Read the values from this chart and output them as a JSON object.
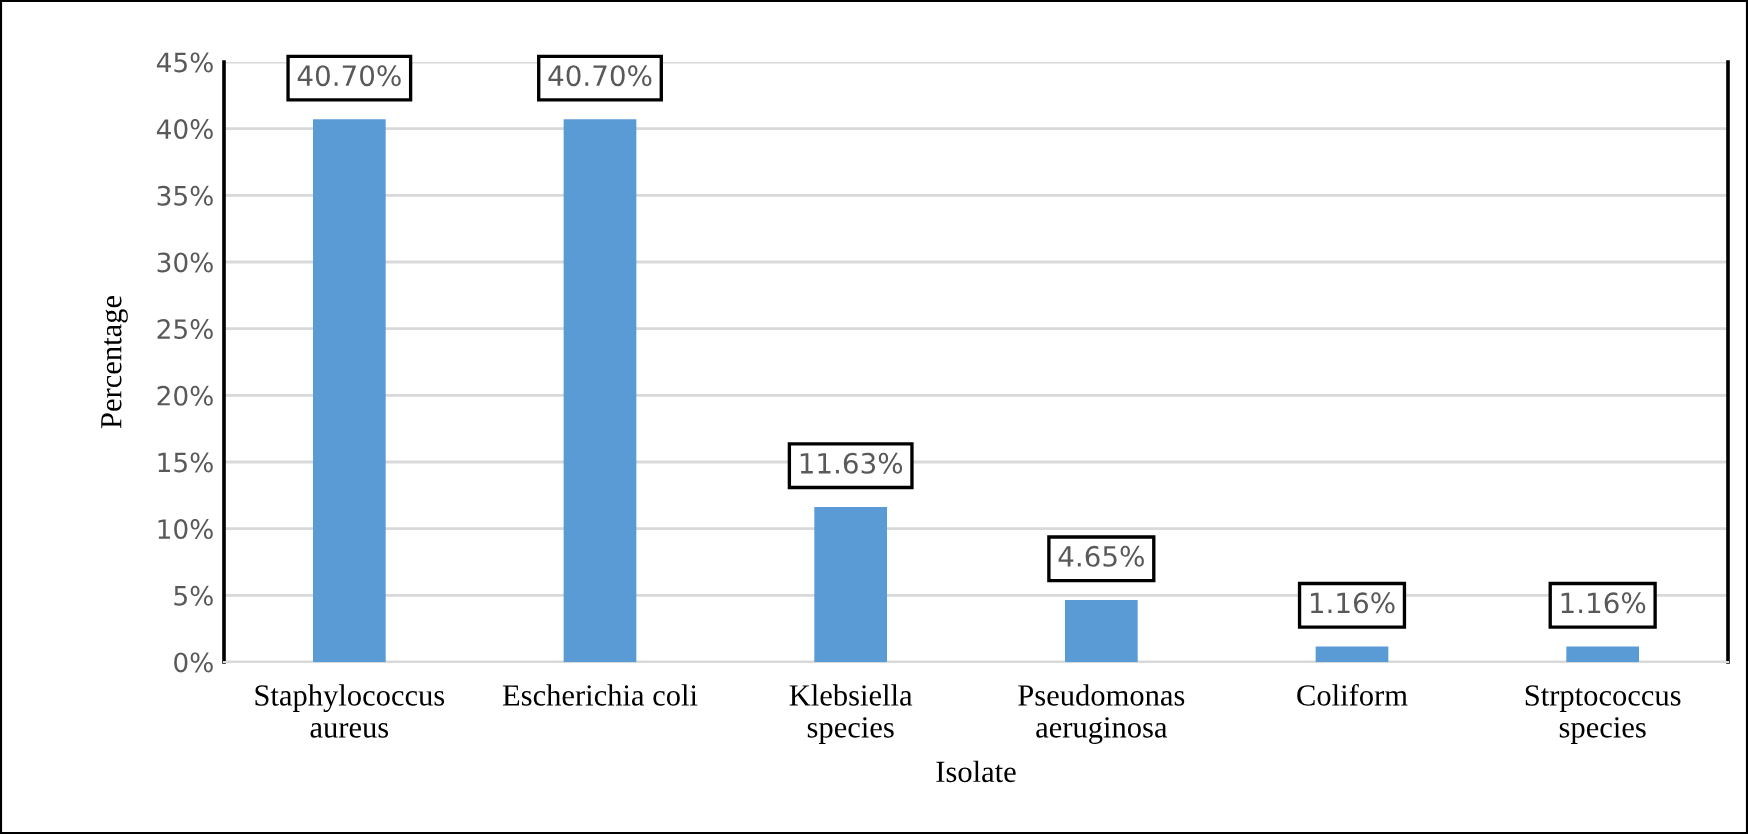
{
  "chart_data": {
    "type": "bar",
    "xlabel": "Isolate",
    "ylabel": "Percentage",
    "categories": [
      "Staphylococcus\naureus",
      "Escherichia coli",
      "Klebsiella\nspecies",
      "Pseudomonas\naeruginosa",
      "Coliform",
      "Strptococcus\nspecies"
    ],
    "values": [
      40.7,
      40.7,
      11.63,
      4.65,
      1.16,
      1.16
    ],
    "value_labels": [
      "40.70%",
      "40.70%",
      "11.63%",
      "4.65%",
      "1.16%",
      "1.16%"
    ],
    "color": "#5b9bd5",
    "ylim": [
      0,
      45
    ],
    "yticks": [
      {
        "value": 0,
        "label": "0%"
      },
      {
        "value": 5,
        "label": "5%"
      },
      {
        "value": 10,
        "label": "10%"
      },
      {
        "value": 15,
        "label": "15%"
      },
      {
        "value": 20,
        "label": "20%"
      },
      {
        "value": 25,
        "label": "25%"
      },
      {
        "value": 30,
        "label": "30%"
      },
      {
        "value": 35,
        "label": "35%"
      },
      {
        "value": 40,
        "label": "40%"
      },
      {
        "value": 45,
        "label": "45%"
      }
    ],
    "grid": "y"
  }
}
